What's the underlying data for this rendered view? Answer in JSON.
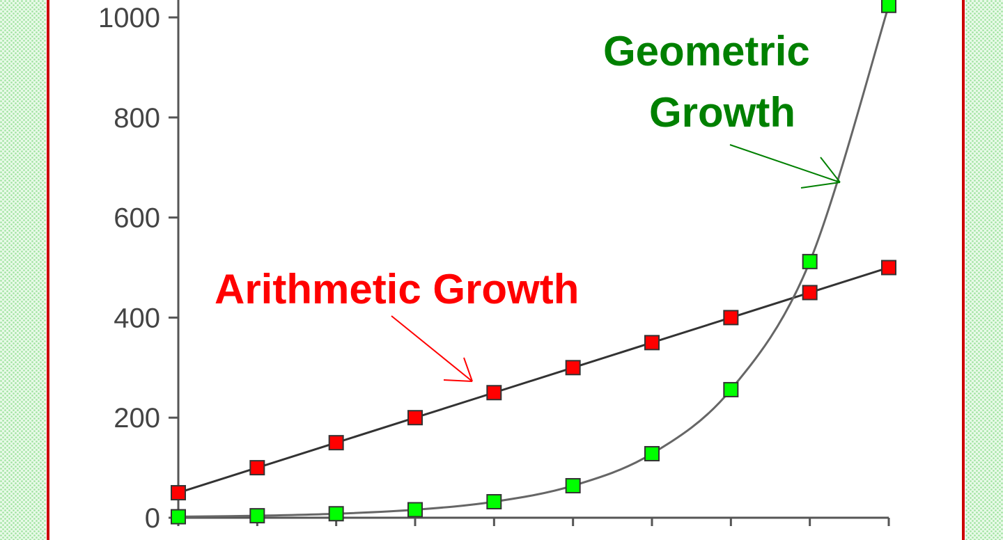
{
  "chart_data": {
    "type": "line",
    "title": "",
    "xlabel": "",
    "ylabel": "",
    "x": [
      0,
      1,
      2,
      3,
      4,
      5,
      6,
      7,
      8,
      9
    ],
    "ylim": [
      0,
      1000
    ],
    "yticks": [
      "0",
      "200",
      "400",
      "600",
      "800",
      "1000"
    ],
    "grid": false,
    "legend": "none",
    "series": [
      {
        "key": "arithmetic",
        "values": [
          50,
          100,
          150,
          200,
          250,
          300,
          350,
          400,
          450,
          500
        ],
        "marker_color": "#ff0000",
        "annotation": "Arithmetic Growth"
      },
      {
        "key": "geometric",
        "values": [
          2,
          4,
          8,
          16,
          32,
          64,
          128,
          256,
          512,
          1024
        ],
        "marker_color": "#00ff00",
        "annotation_lines": [
          "Geometric",
          "Growth"
        ]
      }
    ],
    "annotation_colors": {
      "arithmetic": "#ff0000",
      "geometric": "#008000"
    },
    "frame_color": "#cc0000",
    "side_band_color": "#c8f0c8"
  }
}
